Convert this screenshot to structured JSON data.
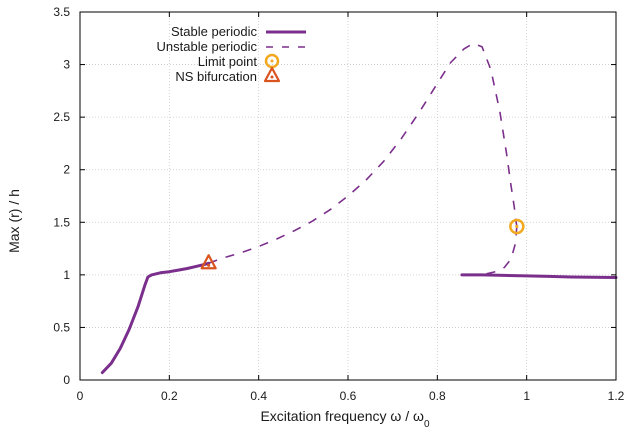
{
  "chart_data": {
    "type": "line",
    "xlabel": "Excitation frequency ω / ω",
    "xlabel_subscript": "0",
    "ylabel": "Max (r) / h",
    "xlim": [
      0,
      1.2
    ],
    "ylim": [
      0,
      3.5
    ],
    "x_ticks": [
      "0",
      "0.2",
      "0.4",
      "0.6",
      "0.8",
      "1",
      "1.2"
    ],
    "y_ticks": [
      "0",
      "0.5",
      "1",
      "1.5",
      "2",
      "2.5",
      "3",
      "3.5"
    ],
    "grid": true,
    "legend_position": "top-left",
    "colors": {
      "periodic": "#7b2f8c",
      "limit_point": "#f2a91f",
      "ns_bifurcation": "#d9541e"
    },
    "series": [
      {
        "name": "Stable periodic",
        "style": "solid",
        "segments": [
          {
            "x": [
              0.05,
              0.07,
              0.09,
              0.11,
              0.13,
              0.145,
              0.152,
              0.16,
              0.18,
              0.2,
              0.22,
              0.24,
              0.26,
              0.28,
              0.288
            ],
            "y": [
              0.07,
              0.16,
              0.3,
              0.48,
              0.7,
              0.9,
              0.98,
              1.0,
              1.02,
              1.03,
              1.045,
              1.06,
              1.08,
              1.1,
              1.11
            ]
          },
          {
            "x": [
              0.855,
              0.9,
              0.95,
              1.0,
              1.05,
              1.1,
              1.15,
              1.2
            ],
            "y": [
              1.0,
              1.0,
              0.995,
              0.99,
              0.985,
              0.98,
              0.978,
              0.975
            ]
          }
        ]
      },
      {
        "name": "Unstable periodic",
        "style": "dashed",
        "segments": [
          {
            "x": [
              0.288,
              0.32,
              0.36,
              0.4,
              0.44,
              0.48,
              0.52,
              0.56,
              0.6,
              0.64,
              0.68,
              0.72,
              0.76,
              0.8,
              0.83,
              0.86,
              0.88,
              0.9,
              0.92,
              0.94,
              0.955,
              0.965,
              0.972,
              0.976,
              0.978
            ],
            "y": [
              1.11,
              1.16,
              1.21,
              1.27,
              1.34,
              1.42,
              1.51,
              1.62,
              1.75,
              1.9,
              2.08,
              2.3,
              2.55,
              2.82,
              3.02,
              3.15,
              3.2,
              3.17,
              2.95,
              2.55,
              2.15,
              1.85,
              1.65,
              1.52,
              1.46
            ]
          },
          {
            "x": [
              0.978,
              0.975,
              0.965,
              0.95,
              0.93,
              0.91,
              0.89
            ],
            "y": [
              1.46,
              1.3,
              1.15,
              1.07,
              1.03,
              1.01,
              1.005
            ]
          }
        ]
      }
    ],
    "markers": [
      {
        "name": "Limit point",
        "shape": "circle",
        "x": 0.978,
        "y": 1.46
      },
      {
        "name": "NS bifurcation",
        "shape": "triangle",
        "x": 0.288,
        "y": 1.11
      }
    ]
  }
}
